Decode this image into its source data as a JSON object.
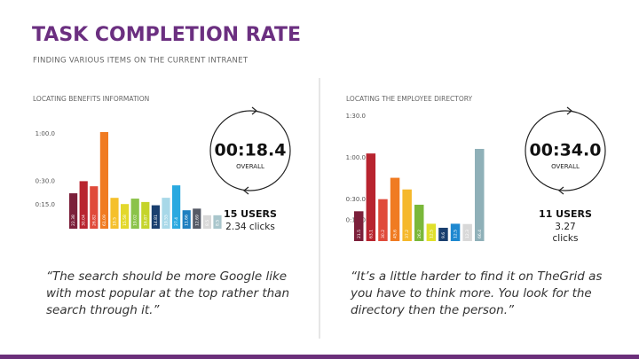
{
  "header": {
    "title": "TASK COMPLETION RATE",
    "subtitle": "FINDING VARIOUS ITEMS ON THE CURRENT INTRANET"
  },
  "chart_data": [
    {
      "type": "bar",
      "title": "LOCATING BENEFITS INFORMATION",
      "categories": [
        null,
        null,
        null,
        null,
        null,
        null,
        null,
        null,
        null,
        null,
        null,
        null,
        null,
        null,
        null
      ],
      "values": [
        22.38,
        30.04,
        26.82,
        61.09,
        19.5,
        15.58,
        19.02,
        16.87,
        14.81,
        19.55,
        27.4,
        11.66,
        12.69,
        8.5,
        8.5
      ],
      "colors": [
        "#7b1f3a",
        "#b8242f",
        "#e04a3a",
        "#f07b22",
        "#f5c02b",
        "#e3d82c",
        "#8bc34a",
        "#c5d42b",
        "#1a3f6f",
        "#a8d8e8",
        "#2aa9e0",
        "#1e7fc0",
        "#555a66",
        "#d8d8d8",
        "#a9c6cc"
      ],
      "ylim": [
        0,
        65
      ],
      "yticks": [
        {
          "value": 15,
          "label": "0:15.0"
        },
        {
          "value": 30,
          "label": "0:30.0"
        },
        {
          "value": 60,
          "label": "1:00.0"
        }
      ]
    },
    {
      "type": "bar",
      "title": "LOCATING THE EMPLOYEE DIRECTORY",
      "categories": [
        null,
        null,
        null,
        null,
        null,
        null,
        null,
        null,
        null,
        null,
        null
      ],
      "values": [
        21.5,
        63.1,
        30.2,
        45.6,
        37.2,
        26.2,
        12.5,
        9.6,
        12.5,
        12.3,
        66.4
      ],
      "colors": [
        "#7b1f3a",
        "#b8242f",
        "#e04a3a",
        "#f07b22",
        "#f5b82b",
        "#7ab83a",
        "#e0e02b",
        "#1a3f6f",
        "#1e88d0",
        "#d8d8d8",
        "#8fb0b8"
      ],
      "ylim": [
        0,
        90
      ],
      "yticks": [
        {
          "value": 15,
          "label": "0:15.0"
        },
        {
          "value": 30,
          "label": "0:30.0"
        },
        {
          "value": 60,
          "label": "1:00.0"
        },
        {
          "value": 90,
          "label": "1:30.0"
        }
      ]
    }
  ],
  "panels": [
    {
      "time": "00:18.4",
      "overall": "OVERALL",
      "users": "15 USERS",
      "clicks": [
        "2.34 clicks"
      ],
      "quote": "“The search should be more Google like with most popular at the top rather than search through it.”"
    },
    {
      "time": "00:34.0",
      "overall": "OVERALL",
      "users": "11 USERS",
      "clicks": [
        "3.27",
        "clicks"
      ],
      "quote": "“It’s a little harder to find it on TheGrid as you have to think more. You look for the directory then the person.”"
    }
  ]
}
